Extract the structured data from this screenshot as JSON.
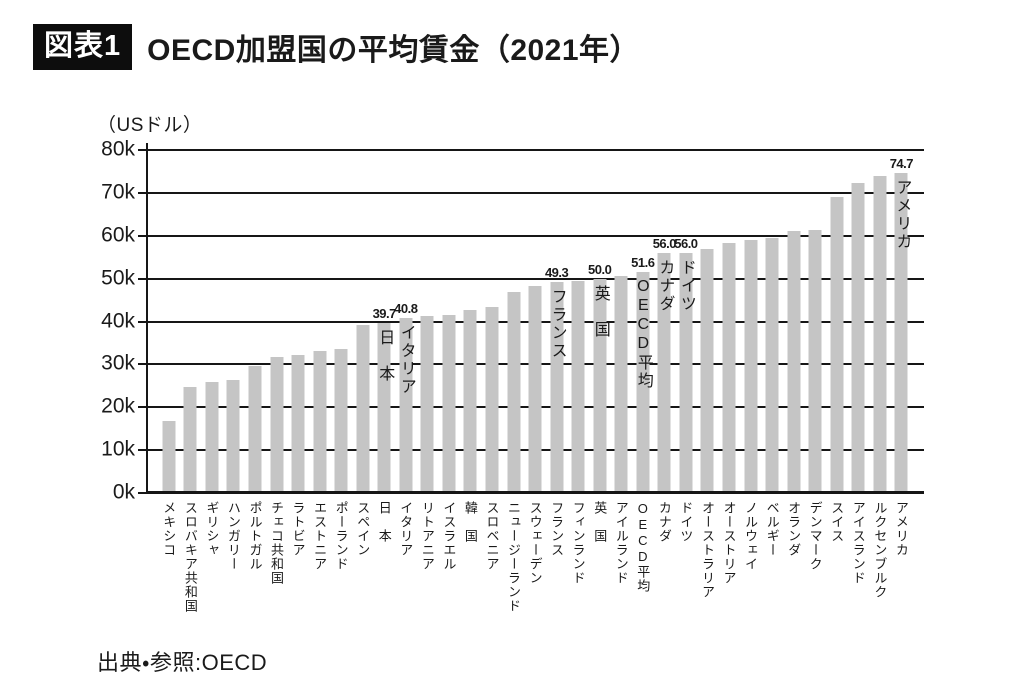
{
  "header": {
    "figure_label": "図表1",
    "title": "OECD加盟国の平均賃金（2021年）"
  },
  "source": {
    "text": "出典・参照:OECD"
  },
  "chart_data": {
    "type": "bar",
    "title": "OECD加盟国の平均賃金（2021年）",
    "ylabel": "（USドル）",
    "unit": "USドル (thousands, k)",
    "ylim": [
      0,
      80
    ],
    "ytick_labels_top_to_bottom": [
      "80k",
      "70k",
      "60k",
      "50k",
      "40k",
      "30k",
      "20k",
      "10k",
      "0k"
    ],
    "grid": "horizontal gridlines every 10k, drawn behind bars",
    "legend": "none",
    "bar_color": "#c5c5c5",
    "axis_color": "#161616",
    "bars": [
      {
        "label": "メキシコ",
        "value": 16.7
      },
      {
        "label": "スロバキア共和国",
        "value": 24.7
      },
      {
        "label": "ギリシャ",
        "value": 26.0
      },
      {
        "label": "ハンガリー",
        "value": 26.4
      },
      {
        "label": "ポルトガル",
        "value": 29.7
      },
      {
        "label": "チェコ共和国",
        "value": 31.7
      },
      {
        "label": "ラトビア",
        "value": 32.2
      },
      {
        "label": "エストニア",
        "value": 33.2
      },
      {
        "label": "ポーランド",
        "value": 33.6
      },
      {
        "label": "スペイン",
        "value": 39.2
      },
      {
        "label": "日　本",
        "value": 39.7,
        "value_label": "39.7",
        "bar_label": "日　本"
      },
      {
        "label": "イタリア",
        "value": 40.8,
        "value_label": "40.8",
        "bar_label": "イタリア"
      },
      {
        "label": "リトアニア",
        "value": 41.3
      },
      {
        "label": "イスラエル",
        "value": 41.6
      },
      {
        "label": "韓　国",
        "value": 42.7
      },
      {
        "label": "スロベニア",
        "value": 43.4
      },
      {
        "label": "ニュージーランド",
        "value": 47.0
      },
      {
        "label": "スウェーデン",
        "value": 48.2
      },
      {
        "label": "フランス",
        "value": 49.3,
        "value_label": "49.3",
        "bar_label": "フランス"
      },
      {
        "label": "フィンランド",
        "value": 49.4
      },
      {
        "label": "英　国",
        "value": 50.0,
        "value_label": "50.0",
        "bar_label": "英　国"
      },
      {
        "label": "アイルランド",
        "value": 50.6
      },
      {
        "label": "OECD平均",
        "value": 51.6,
        "value_label": "51.6",
        "bar_label": "OECD平均"
      },
      {
        "label": "カナダ",
        "value": 56.0,
        "value_label": "56.0",
        "bar_label": "カナダ"
      },
      {
        "label": "ドイツ",
        "value": 56.0,
        "value_label": "56.0",
        "bar_label": "ドイツ"
      },
      {
        "label": "オーストラリア",
        "value": 57.0
      },
      {
        "label": "オーストリア",
        "value": 58.4
      },
      {
        "label": "ノルウェイ",
        "value": 58.9
      },
      {
        "label": "ベルギー",
        "value": 59.5
      },
      {
        "label": "オランダ",
        "value": 61.0
      },
      {
        "label": "デンマーク",
        "value": 61.3
      },
      {
        "label": "スイス",
        "value": 69.0
      },
      {
        "label": "アイスランド",
        "value": 72.2
      },
      {
        "label": "ルクセンブルク",
        "value": 74.0
      },
      {
        "label": "アメリカ",
        "value": 74.7,
        "value_label": "74.7",
        "bar_label": "アメリカ"
      }
    ]
  }
}
